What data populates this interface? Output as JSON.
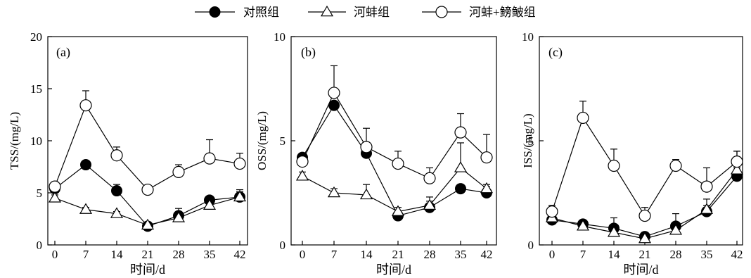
{
  "legend": [
    {
      "label": "对照组",
      "marker": "filled-circle"
    },
    {
      "label": "河蚌组",
      "marker": "open-triangle"
    },
    {
      "label": "河蚌+鳑鲏组",
      "marker": "open-circle"
    }
  ],
  "colors": {
    "line": "#000000",
    "filled": "#000000",
    "open": "#ffffff"
  },
  "chart_data": [
    {
      "type": "line",
      "panel_label": "(a)",
      "xlabel": "时间/d",
      "ylabel": "TSS/(mg/L)",
      "x": [
        0,
        7,
        14,
        21,
        28,
        35,
        42
      ],
      "xticks": [
        "0",
        "7",
        "14",
        "21",
        "28",
        "35",
        "42"
      ],
      "yticks": [
        "0",
        "5",
        "10",
        "15",
        "20"
      ],
      "ylim": [
        0,
        20
      ],
      "series": [
        {
          "name": "对照组",
          "marker": "filled-circle",
          "values": [
            5.4,
            7.7,
            5.2,
            1.8,
            2.8,
            4.3,
            4.6
          ],
          "error": [
            0.3,
            0.3,
            0.6,
            0.3,
            0.7,
            0.3,
            0.7
          ]
        },
        {
          "name": "河蚌组",
          "marker": "open-triangle",
          "values": [
            4.5,
            3.4,
            3.0,
            1.9,
            2.6,
            3.8,
            4.6
          ],
          "error": [
            0.3,
            0.2,
            0.2,
            0.3,
            0.3,
            0.3,
            0.5
          ]
        },
        {
          "name": "河蚌+鳑鲏组",
          "marker": "open-circle",
          "values": [
            5.6,
            13.4,
            8.6,
            5.3,
            7.0,
            8.3,
            7.8
          ],
          "error": [
            0.3,
            1.4,
            0.8,
            0.2,
            0.7,
            1.8,
            1.0
          ]
        }
      ]
    },
    {
      "type": "line",
      "panel_label": "(b)",
      "xlabel": "时间/d",
      "ylabel": "OSS/(mg/L)",
      "x": [
        0,
        7,
        14,
        21,
        28,
        35,
        42
      ],
      "xticks": [
        "0",
        "7",
        "14",
        "21",
        "28",
        "35",
        "42"
      ],
      "yticks": [
        "0",
        "5",
        "10"
      ],
      "ylim": [
        0,
        10
      ],
      "series": [
        {
          "name": "对照组",
          "marker": "filled-circle",
          "values": [
            4.2,
            6.7,
            4.4,
            1.4,
            1.8,
            2.7,
            2.5
          ],
          "error": [
            0.2,
            0.2,
            0.3,
            0.2,
            0.3,
            0.2,
            0.3
          ]
        },
        {
          "name": "河蚌组",
          "marker": "open-triangle",
          "values": [
            3.3,
            2.5,
            2.4,
            1.6,
            1.9,
            3.7,
            2.7
          ],
          "error": [
            0.2,
            0.2,
            0.5,
            0.2,
            0.4,
            1.2,
            0.2
          ]
        },
        {
          "name": "河蚌+鳑鲏组",
          "marker": "open-circle",
          "values": [
            4.0,
            7.3,
            4.7,
            3.9,
            3.2,
            5.4,
            4.2
          ],
          "error": [
            0.2,
            1.3,
            0.9,
            0.6,
            0.5,
            0.9,
            1.1
          ]
        }
      ]
    },
    {
      "type": "line",
      "panel_label": "(c)",
      "xlabel": "时间/d",
      "ylabel": "ISS/(mg/L)",
      "x": [
        0,
        7,
        14,
        21,
        28,
        35,
        42
      ],
      "xticks": [
        "0",
        "7",
        "14",
        "21",
        "28",
        "35",
        "42"
      ],
      "yticks": [
        "0",
        "5",
        "10"
      ],
      "ylim": [
        0,
        10
      ],
      "series": [
        {
          "name": "对照组",
          "marker": "filled-circle",
          "values": [
            1.2,
            1.0,
            0.8,
            0.4,
            0.9,
            1.6,
            3.3
          ],
          "error": [
            0.1,
            0.1,
            0.5,
            0.2,
            0.6,
            0.3,
            0.4
          ]
        },
        {
          "name": "河蚌组",
          "marker": "open-triangle",
          "values": [
            1.3,
            0.9,
            0.6,
            0.3,
            0.7,
            1.7,
            3.6
          ],
          "error": [
            0.2,
            0.2,
            0.2,
            0.1,
            0.2,
            0.5,
            0.9
          ]
        },
        {
          "name": "河蚌+鳑鲏组",
          "marker": "open-circle",
          "values": [
            1.6,
            6.1,
            3.8,
            1.4,
            3.8,
            2.8,
            4.0
          ],
          "error": [
            0.3,
            0.8,
            0.8,
            0.4,
            0.3,
            0.9,
            0.5
          ]
        }
      ]
    }
  ]
}
